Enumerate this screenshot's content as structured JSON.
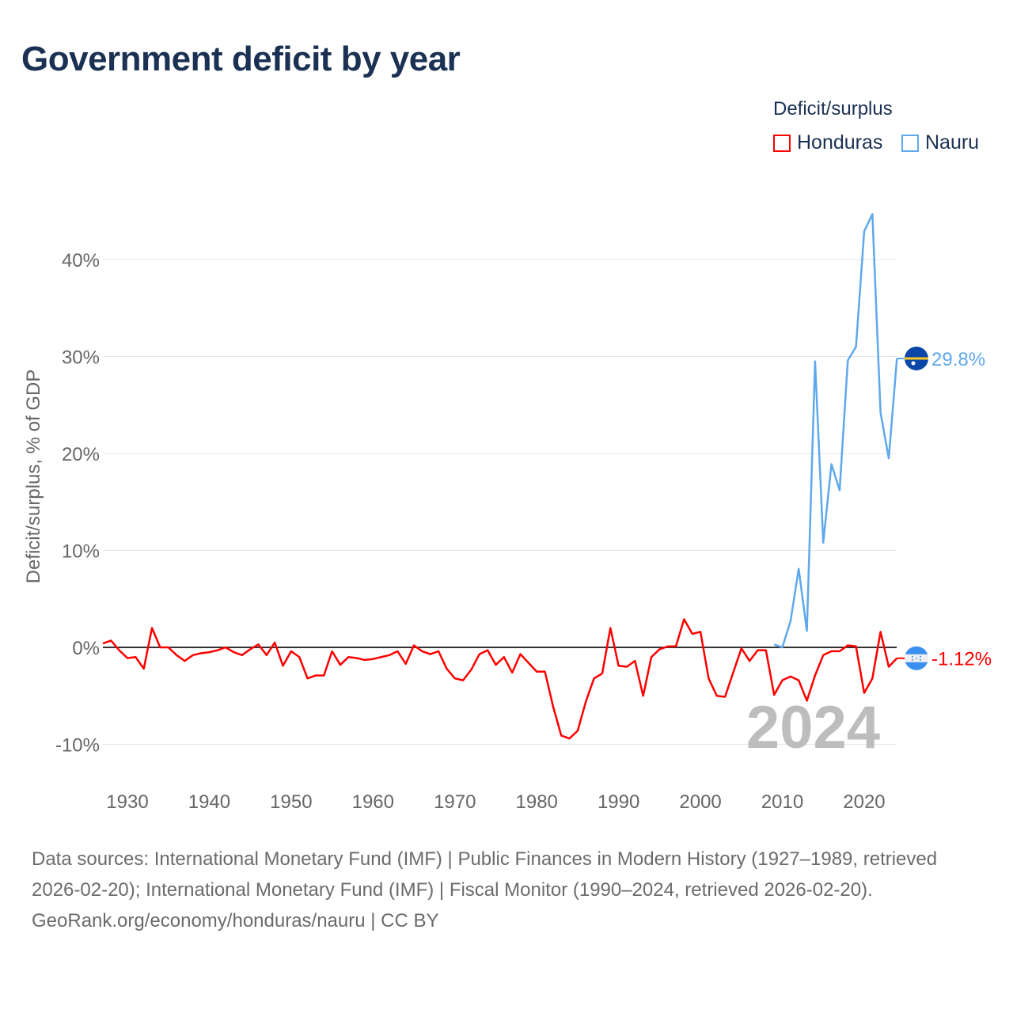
{
  "title": "Government deficit by year",
  "legend": {
    "title": "Deficit/surplus",
    "items": [
      {
        "name": "Honduras",
        "color": "#ff0000"
      },
      {
        "name": "Nauru",
        "color": "#5fa8ec"
      }
    ]
  },
  "footer": {
    "sources": "Data sources: International Monetary Fund (IMF) | Public Finances in Modern History (1927–1989, retrieved 2026-02-20); International Monetary Fund (IMF) | Fiscal Monitor (1990–2024, retrieved 2026-02-20).",
    "credit": "GeoRank.org/economy/honduras/nauru | CC BY"
  },
  "chart_data": {
    "type": "line",
    "title": "Government deficit by year",
    "xlabel": "",
    "ylabel": "Deficit/surplus, % of GDP",
    "xlim": [
      1927,
      2024
    ],
    "ylim": [
      -14,
      47
    ],
    "x_ticks": [
      1930,
      1940,
      1950,
      1960,
      1970,
      1980,
      1990,
      2000,
      2010,
      2020
    ],
    "y_ticks": [
      -10,
      0,
      10,
      20,
      30,
      40
    ],
    "y_tick_labels": [
      "-10%",
      "0%",
      "10%",
      "20%",
      "30%",
      "40%"
    ],
    "grid": true,
    "legend_position": "top-right",
    "year_annotation": "2024",
    "series": [
      {
        "name": "Honduras",
        "color": "#ff0000",
        "end_label": "-1.12%",
        "start_year": 1927,
        "values": [
          0.4,
          0.7,
          -0.3,
          -1.1,
          -1.0,
          -2.2,
          2.0,
          0,
          0,
          -0.8,
          -1.4,
          -0.8,
          -0.6,
          -0.5,
          -0.3,
          0,
          -0.5,
          -0.8,
          -0.2,
          0.3,
          -0.8,
          0.5,
          -1.9,
          -0.4,
          -1.0,
          -3.2,
          -2.9,
          -2.9,
          -0.4,
          -1.8,
          -1.0,
          -1.1,
          -1.3,
          -1.2,
          -1.0,
          -0.8,
          -0.4,
          -1.7,
          0.2,
          -0.4,
          -0.7,
          -0.4,
          -2.2,
          -3.2,
          -3.4,
          -2.3,
          -0.7,
          -0.3,
          -1.8,
          -1.0,
          -2.6,
          -0.7,
          -1.6,
          -2.5,
          -2.5,
          -6.1,
          -9.1,
          -9.4,
          -8.6,
          -5.6,
          -3.2,
          -2.7,
          2.0,
          -1.9,
          -2.0,
          -1.4,
          -5.0,
          -1.0,
          -0.2,
          0.1,
          0.1,
          2.9,
          1.4,
          1.6,
          -3.2,
          -5.0,
          -5.1,
          -2.6,
          -0.1,
          -1.4,
          -0.3,
          -0.3,
          -4.9,
          -3.4,
          -3.0,
          -3.4,
          -5.5,
          -2.9,
          -0.8,
          -0.4,
          -0.4,
          0.2,
          0.1,
          -4.7,
          -3.2,
          1.6,
          -2.0,
          -1.12
        ]
      },
      {
        "name": "Nauru",
        "color": "#5fa8ec",
        "end_label": "29.8%",
        "start_year": 2009,
        "values": [
          0.3,
          0,
          2.7,
          8.1,
          1.7,
          29.5,
          10.8,
          18.9,
          16.2,
          29.6,
          31.0,
          42.9,
          44.7,
          24.2,
          19.5,
          29.8
        ]
      }
    ]
  }
}
